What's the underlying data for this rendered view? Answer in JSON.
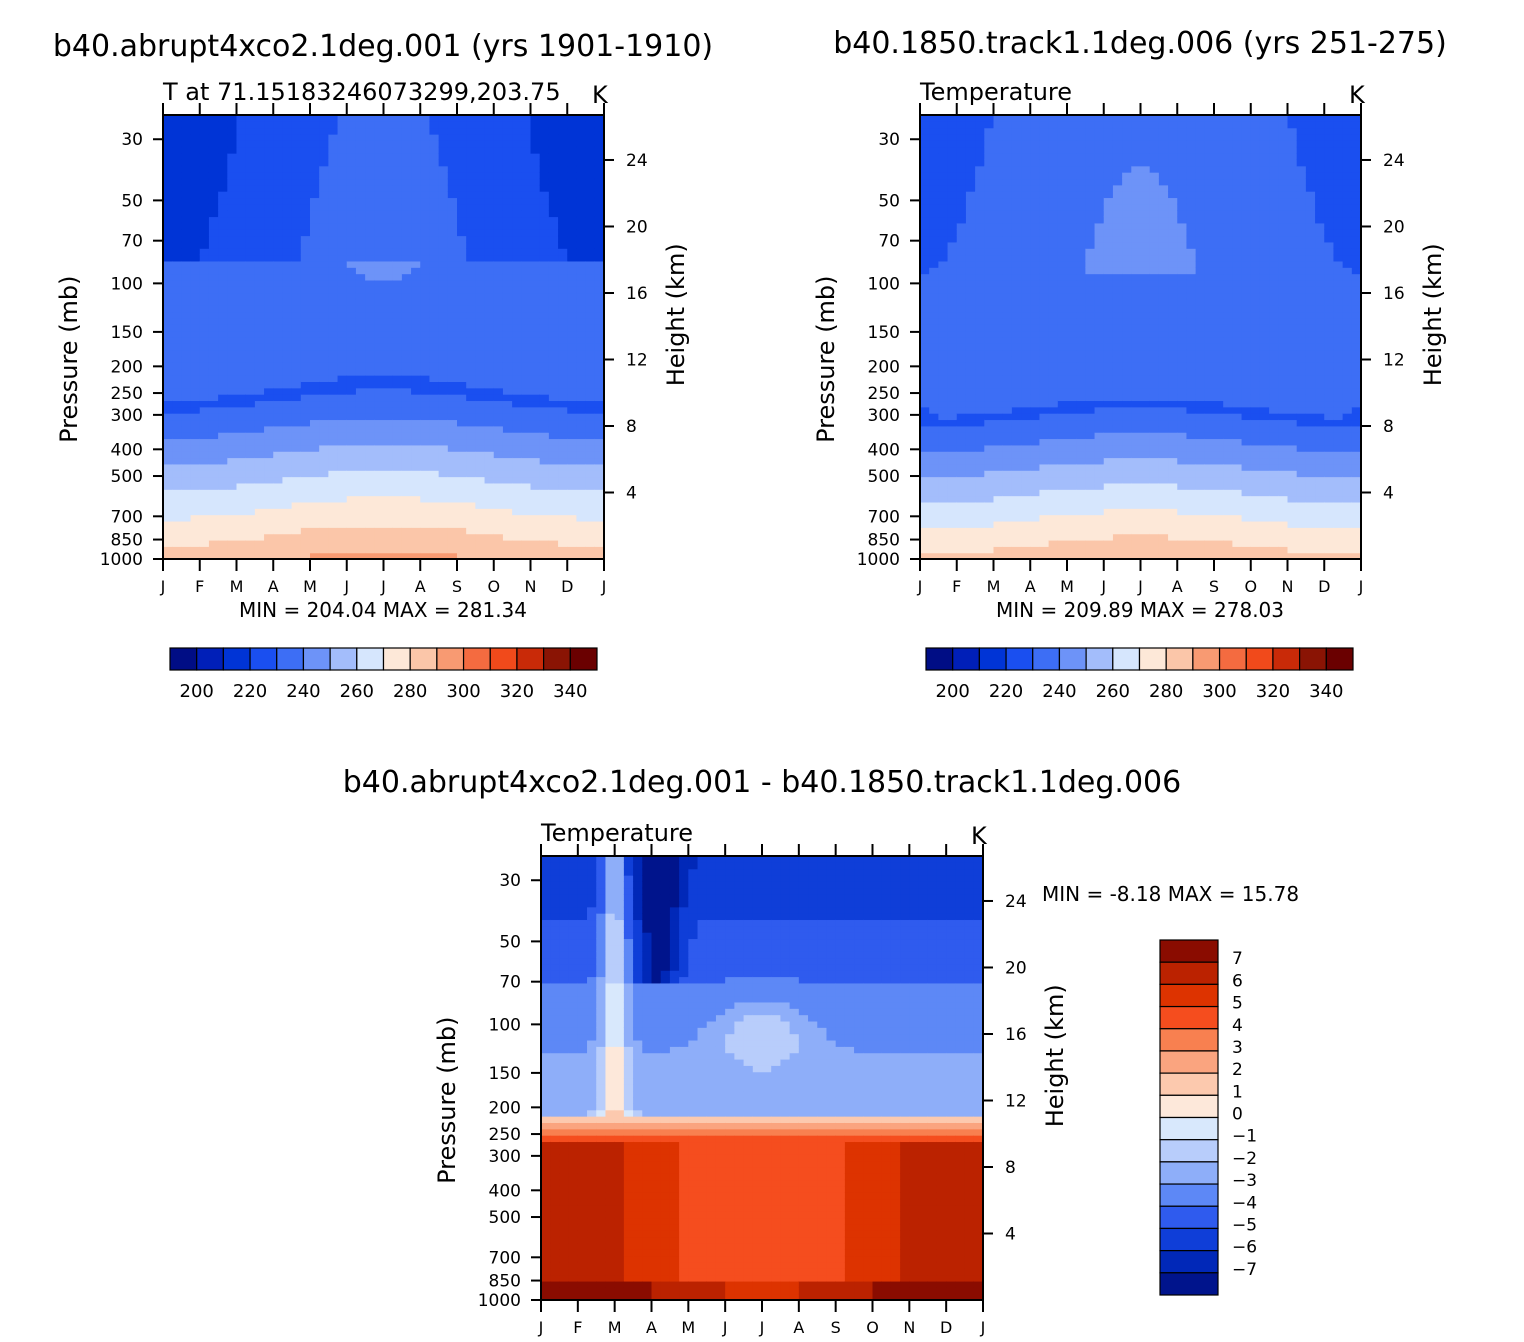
{
  "chart_data": [
    {
      "type": "heatmap",
      "title": "b40.abrupt4xco2.1deg.001 (yrs 1901-1910)",
      "subtitle": "T at 71.15183246073299,203.75",
      "units": "K",
      "xlabel": "",
      "ylabel": "Pressure (mb)",
      "y2label": "Height (km)",
      "x_ticks": [
        "J",
        "F",
        "M",
        "A",
        "M",
        "J",
        "J",
        "A",
        "S",
        "O",
        "N",
        "D",
        "J"
      ],
      "y_ticks": [
        30,
        50,
        70,
        100,
        150,
        200,
        250,
        300,
        400,
        500,
        700,
        850,
        1000
      ],
      "y2_ticks": [
        24,
        20,
        16,
        12,
        8,
        4
      ],
      "min_label": "MIN = 204.04 MAX = 281.34",
      "min": 204.04,
      "max": 281.34,
      "colorbar": {
        "levels": [
          200,
          220,
          240,
          260,
          280,
          300,
          320,
          340
        ],
        "colors": [
          "#000d85",
          "#001fb8",
          "#0034d6",
          "#1a4ff0",
          "#3d6ef5",
          "#6d93f8",
          "#a3bdfb",
          "#d6e6fd",
          "#fde8d8",
          "#fbc6a9",
          "#f89a72",
          "#f46b40",
          "#f14a1b",
          "#c92a08",
          "#8a1404",
          "#6a0000"
        ]
      },
      "grid": false
    },
    {
      "type": "heatmap",
      "title": "b40.1850.track1.1deg.006 (yrs 251-275)",
      "subtitle": "Temperature",
      "units": "K",
      "xlabel": "",
      "ylabel": "Pressure (mb)",
      "y2label": "Height (km)",
      "x_ticks": [
        "J",
        "F",
        "M",
        "A",
        "M",
        "J",
        "J",
        "A",
        "S",
        "O",
        "N",
        "D",
        "J"
      ],
      "y_ticks": [
        30,
        50,
        70,
        100,
        150,
        200,
        250,
        300,
        400,
        500,
        700,
        850,
        1000
      ],
      "y2_ticks": [
        24,
        20,
        16,
        12,
        8,
        4
      ],
      "min_label": "MIN = 209.89 MAX = 278.03",
      "min": 209.89,
      "max": 278.03,
      "colorbar": {
        "levels": [
          200,
          220,
          240,
          260,
          280,
          300,
          320,
          340
        ],
        "colors": [
          "#000d85",
          "#001fb8",
          "#0034d6",
          "#1a4ff0",
          "#3d6ef5",
          "#6d93f8",
          "#a3bdfb",
          "#d6e6fd",
          "#fde8d8",
          "#fbc6a9",
          "#f89a72",
          "#f46b40",
          "#f14a1b",
          "#c92a08",
          "#8a1404",
          "#6a0000"
        ]
      },
      "grid": false
    },
    {
      "type": "heatmap",
      "title": "b40.abrupt4xco2.1deg.001 - b40.1850.track1.1deg.006",
      "subtitle": "Temperature",
      "units": "K",
      "xlabel": "",
      "ylabel": "Pressure (mb)",
      "y2label": "Height (km)",
      "x_ticks": [
        "J",
        "F",
        "M",
        "A",
        "M",
        "J",
        "J",
        "A",
        "S",
        "O",
        "N",
        "D",
        "J"
      ],
      "y_ticks": [
        30,
        50,
        70,
        100,
        150,
        200,
        250,
        300,
        400,
        500,
        700,
        850,
        1000
      ],
      "y2_ticks": [
        24,
        20,
        16,
        12,
        8,
        4
      ],
      "min_label": "MIN = -8.18 MAX = 15.78",
      "min": -8.18,
      "max": 15.78,
      "colorbar": {
        "levels": [
          7,
          6,
          5,
          4,
          3,
          2,
          1,
          0,
          -1,
          -2,
          -3,
          -4,
          -5,
          -6,
          -7
        ],
        "colors": [
          "#8a0c00",
          "#bb2200",
          "#dd3300",
          "#f54d1e",
          "#f88050",
          "#faa47f",
          "#fcc9ae",
          "#fde8da",
          "#d8e8fc",
          "#b8cdfb",
          "#8eaef9",
          "#5d88f6",
          "#2f5bee",
          "#0f3ed8",
          "#0128b8",
          "#00148c"
        ]
      },
      "grid": false
    }
  ]
}
